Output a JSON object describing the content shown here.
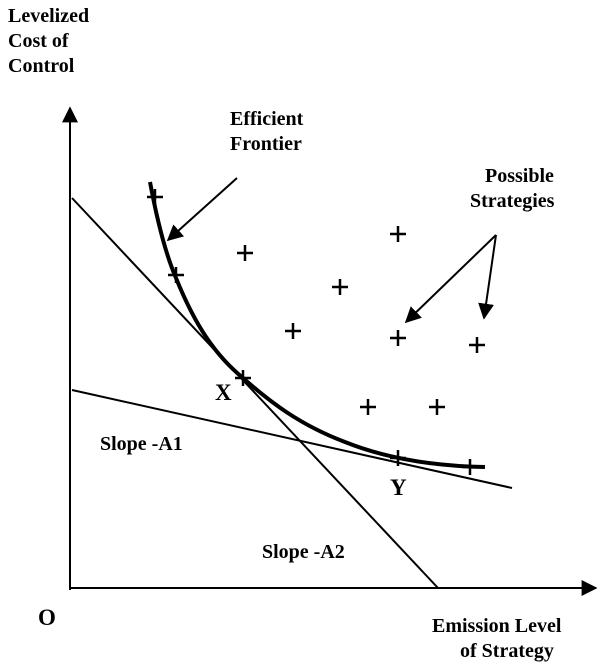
{
  "y_axis_label": [
    "Levelized",
    "Cost of",
    "Control"
  ],
  "x_axis_label": [
    "Emission Level",
    "of Strategy"
  ],
  "origin_label": "O",
  "annotations": {
    "efficient_frontier": [
      "Efficient",
      "Frontier"
    ],
    "possible_strategies": [
      "Possible",
      "Strategies"
    ],
    "point_x": "X",
    "point_y": "Y",
    "slope_a1": "Slope -A1",
    "slope_a2": "Slope -A2"
  }
}
